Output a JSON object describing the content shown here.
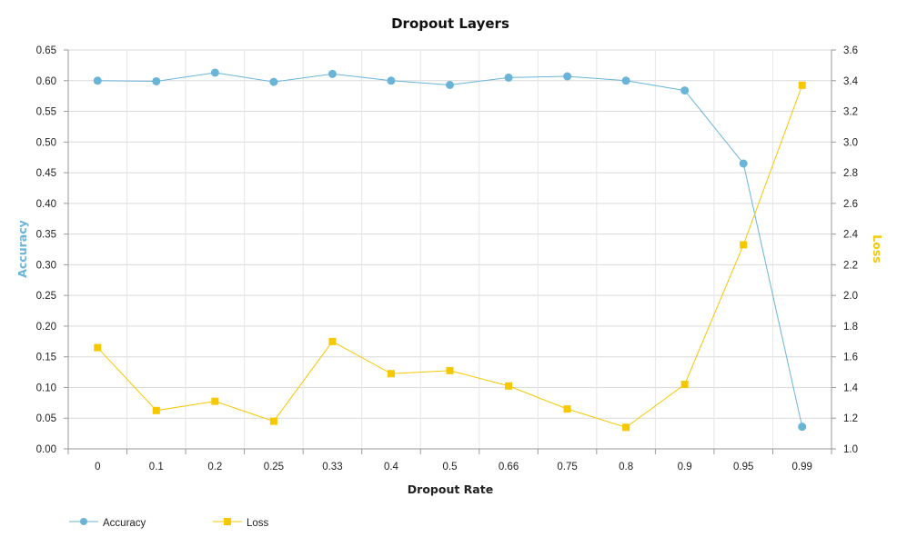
{
  "chart_data": {
    "type": "line",
    "title": "Dropout Layers",
    "xlabel": "Dropout Rate",
    "categories": [
      "0",
      "0.1",
      "0.2",
      "0.25",
      "0.33",
      "0.4",
      "0.5",
      "0.66",
      "0.75",
      "0.8",
      "0.9",
      "0.95",
      "0.99"
    ],
    "y_left": {
      "label": "Accuracy",
      "min": 0.0,
      "max": 0.65,
      "step": 0.05,
      "ticks": [
        "0.00",
        "0.05",
        "0.10",
        "0.15",
        "0.20",
        "0.25",
        "0.30",
        "0.35",
        "0.40",
        "0.45",
        "0.50",
        "0.55",
        "0.60",
        "0.65"
      ]
    },
    "y_right": {
      "label": "Loss",
      "min": 1.0,
      "max": 3.6,
      "step": 0.2,
      "ticks": [
        "1.0",
        "1.2",
        "1.4",
        "1.6",
        "1.8",
        "2.0",
        "2.2",
        "2.4",
        "2.6",
        "2.8",
        "3.0",
        "3.2",
        "3.4",
        "3.6"
      ]
    },
    "series": [
      {
        "name": "Accuracy",
        "axis": "left",
        "marker": "circle",
        "color": "#6ab4d8",
        "values": [
          0.6,
          0.599,
          0.613,
          0.598,
          0.611,
          0.6,
          0.593,
          0.605,
          0.607,
          0.6,
          0.584,
          0.465,
          0.036
        ]
      },
      {
        "name": "Loss",
        "axis": "right",
        "marker": "square",
        "color": "#f5c800",
        "values": [
          1.66,
          1.25,
          1.31,
          1.18,
          1.7,
          1.49,
          1.51,
          1.41,
          1.26,
          1.14,
          1.42,
          2.33,
          3.37
        ]
      }
    ],
    "grid": true,
    "legend": "bottom-left",
    "axis_title_colors": {
      "left": "#6ab4d8",
      "right": "#f5c800"
    }
  }
}
